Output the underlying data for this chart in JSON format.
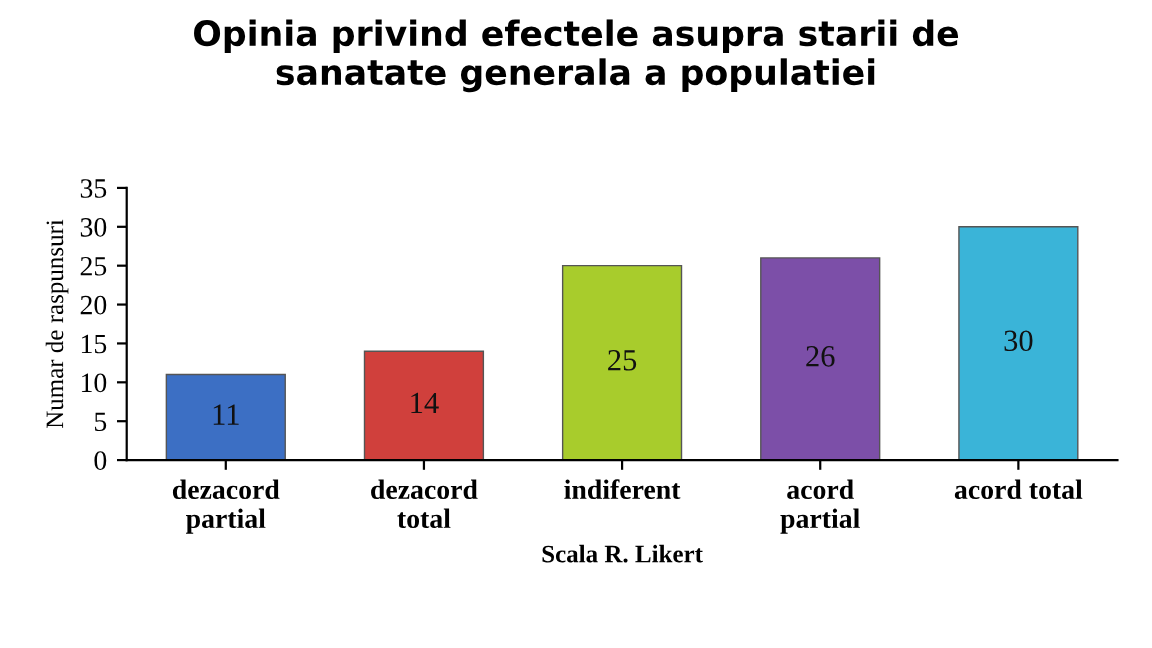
{
  "chart_data": {
    "type": "bar",
    "title": "Opinia privind efectele asupra starii de\nsanatate generala a populatiei",
    "xlabel": "Scala R. Likert",
    "ylabel": "Numar de raspunsuri",
    "categories": [
      "dezacord\npartial",
      "dezacord\ntotal",
      "indiferent",
      "acord\npartial",
      "acord total"
    ],
    "values": [
      11,
      14,
      25,
      26,
      30
    ],
    "colors": [
      "#3c6fc4",
      "#d0403c",
      "#a8cc2c",
      "#7c4fa8",
      "#3ab4d8"
    ],
    "ylim": [
      0,
      35
    ],
    "yticks": [
      0,
      5,
      10,
      15,
      20,
      25,
      30,
      35
    ],
    "data_labels": true,
    "grid": false,
    "legend": false
  }
}
